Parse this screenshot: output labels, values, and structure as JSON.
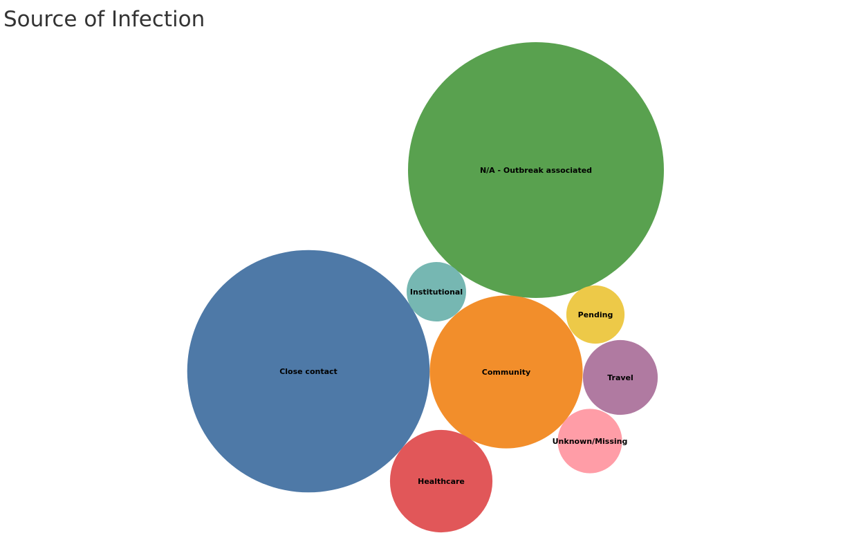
{
  "chart_data": {
    "type": "bubble",
    "title": "Source of Infection",
    "categories": [
      "N/A - Outbreak associated",
      "Close contact",
      "Community",
      "Healthcare",
      "Institutional",
      "Travel",
      "Unknown/Missing",
      "Pending"
    ],
    "values": [
      13700,
      12300,
      4900,
      2200,
      740,
      1170,
      870,
      710
    ],
    "colors": {
      "N/A - Outbreak associated": "#59a14f",
      "Close contact": "#4e79a7",
      "Community": "#f28e2b",
      "Healthcare": "#e15759",
      "Institutional": "#76b7b2",
      "Travel": "#b07aa1",
      "Unknown/Missing": "#ff9da7",
      "Pending": "#edc948"
    }
  }
}
